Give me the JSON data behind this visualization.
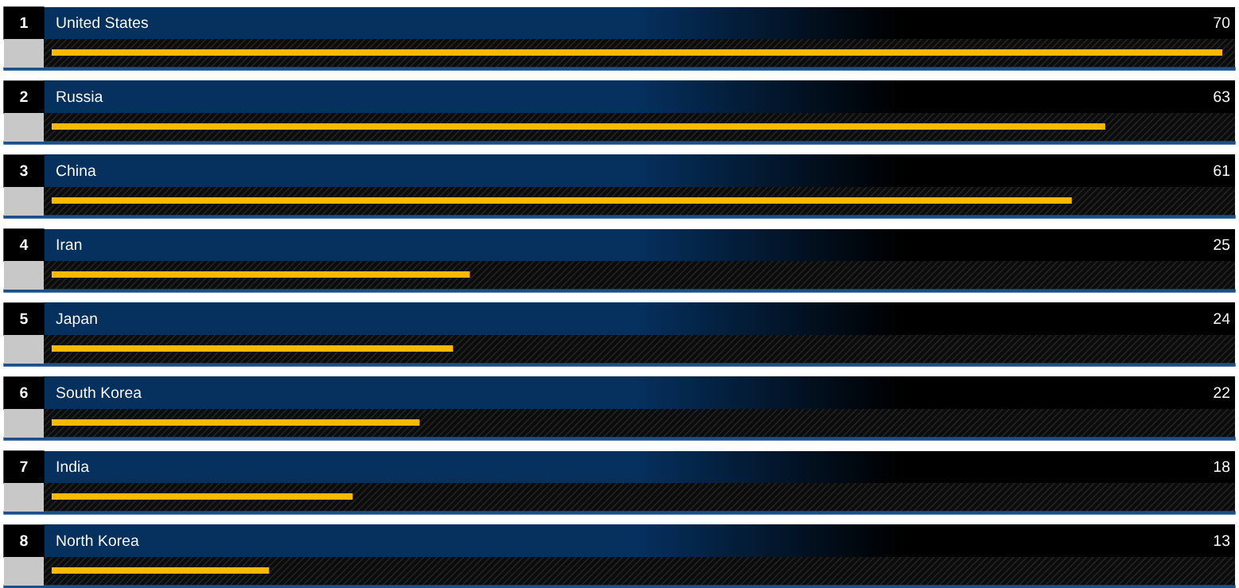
{
  "chart_data": {
    "type": "bar",
    "orientation": "horizontal",
    "categories": [
      "United States",
      "Russia",
      "China",
      "Iran",
      "Japan",
      "South Korea",
      "India",
      "North Korea"
    ],
    "values": [
      70,
      63,
      61,
      25,
      24,
      22,
      18,
      13
    ],
    "color": "#ffb800",
    "data_labels": true,
    "annotations": [
      "1",
      "2",
      "3",
      "4",
      "5",
      "6",
      "7",
      "8"
    ]
  }
}
